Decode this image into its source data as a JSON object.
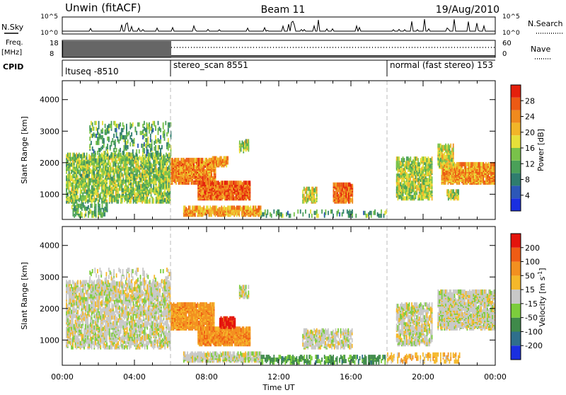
{
  "header": {
    "station": "Unwin (fitACF)",
    "beam": "Beam 11",
    "date": "19/Aug/2010"
  },
  "summary": {
    "nsky_label": "N.Sky",
    "nsearch_label": "N.Search",
    "nsky_ticks": [
      "10^5",
      "10^0"
    ],
    "nsearch_ticks": [
      "10^5",
      "10^0"
    ],
    "freq_label": "Freq.",
    "freq_unit": "[MHz]",
    "freq_ticks": [
      "18",
      "8"
    ],
    "nave_label": "Nave",
    "nave_ticks": [
      "60",
      "0"
    ],
    "cpid_label": "CPID",
    "cpid_segments": [
      {
        "label": "ltuseq -8510",
        "start": 0,
        "end": 6
      },
      {
        "label": "stereo_scan 8551",
        "start": 6,
        "end": 18
      },
      {
        "label": "normal (fast stereo) 153",
        "start": 18,
        "end": 24
      }
    ]
  },
  "chart_data": [
    {
      "type": "heatmap",
      "name": "power",
      "ylabel": "Slant Range [km]",
      "xlabel": "Time UT",
      "xlim": [
        0,
        24
      ],
      "ylim": [
        200,
        4600
      ],
      "yticks": [
        "1000",
        "2000",
        "3000",
        "4000"
      ],
      "xticks": [
        "00:00",
        "04:00",
        "08:00",
        "12:00",
        "16:00",
        "20:00",
        "00:00"
      ],
      "colorbar": {
        "label": "Power [dB]",
        "ticks": [
          "4",
          "8",
          "12",
          "16",
          "20",
          "24",
          "28"
        ],
        "colors": [
          "#1a2fe0",
          "#2c57b8",
          "#2f7d6e",
          "#4aa058",
          "#79c24a",
          "#e6e03a",
          "#f2b528",
          "#f08a1e",
          "#ec5a14",
          "#e4200c"
        ]
      },
      "regions": [
        {
          "t0": 0.2,
          "t1": 6.0,
          "r0": 700,
          "r1": 2200,
          "level": 0.45,
          "dens": 0.55
        },
        {
          "t0": 1.5,
          "t1": 6.0,
          "r0": 2200,
          "r1": 3200,
          "level": 0.35,
          "dens": 0.18
        },
        {
          "t0": 0.5,
          "t1": 2.5,
          "r0": 250,
          "r1": 650,
          "level": 0.4,
          "dens": 0.3
        },
        {
          "t0": 6.0,
          "t1": 8.5,
          "r0": 1300,
          "r1": 2050,
          "level": 0.75,
          "dens": 0.8
        },
        {
          "t0": 8.3,
          "t1": 9.2,
          "r0": 1850,
          "r1": 2100,
          "level": 0.7,
          "dens": 0.7
        },
        {
          "t0": 7.5,
          "t1": 10.4,
          "r0": 800,
          "r1": 1300,
          "level": 0.82,
          "dens": 0.85
        },
        {
          "t0": 6.7,
          "t1": 11.0,
          "r0": 280,
          "r1": 520,
          "level": 0.7,
          "dens": 0.7
        },
        {
          "t0": 9.8,
          "t1": 10.3,
          "r0": 2300,
          "r1": 2650,
          "level": 0.45,
          "dens": 0.5
        },
        {
          "t0": 13.3,
          "t1": 14.1,
          "r0": 700,
          "r1": 1150,
          "level": 0.55,
          "dens": 0.5
        },
        {
          "t0": 15.0,
          "t1": 16.1,
          "r0": 700,
          "r1": 1250,
          "level": 0.8,
          "dens": 0.7
        },
        {
          "t0": 11.0,
          "t1": 18.0,
          "r0": 250,
          "r1": 420,
          "level": 0.35,
          "dens": 0.2
        },
        {
          "t0": 18.5,
          "t1": 20.5,
          "r0": 800,
          "r1": 2100,
          "level": 0.5,
          "dens": 0.55
        },
        {
          "t0": 21.0,
          "t1": 24.0,
          "r0": 1300,
          "r1": 1900,
          "level": 0.72,
          "dens": 0.8
        },
        {
          "t0": 20.8,
          "t1": 21.7,
          "r0": 1800,
          "r1": 2500,
          "level": 0.55,
          "dens": 0.6
        },
        {
          "t0": 21.3,
          "t1": 22.0,
          "r0": 800,
          "r1": 1050,
          "level": 0.5,
          "dens": 0.6
        }
      ]
    },
    {
      "type": "heatmap",
      "name": "velocity",
      "ylabel": "Slant Range [km]",
      "xlabel": "Time UT",
      "xlim": [
        0,
        24
      ],
      "ylim": [
        200,
        4600
      ],
      "yticks": [
        "1000",
        "2000",
        "3000",
        "4000"
      ],
      "xticks": [
        "00:00",
        "04:00",
        "08:00",
        "12:00",
        "16:00",
        "20:00",
        "00:00"
      ],
      "colorbar": {
        "label": "Velocity [m s^-1]",
        "ticks": [
          "200",
          "100",
          "50",
          "15",
          "-15",
          "-50",
          "-100",
          "-200"
        ],
        "colors": [
          "#1a2fe0",
          "#2f6f8c",
          "#3f8a4a",
          "#7ccd3c",
          "#c8c8c8",
          "#f5b82a",
          "#f39020",
          "#ef5c14",
          "#e4140c"
        ]
      },
      "regions": [
        {
          "t0": 0.2,
          "t1": 6.0,
          "r0": 700,
          "r1": 2800,
          "level": 0.5,
          "dens": 0.5
        },
        {
          "t0": 1.5,
          "t1": 6.0,
          "r0": 2800,
          "r1": 3200,
          "level": 0.5,
          "dens": 0.15
        },
        {
          "t0": 6.0,
          "t1": 8.4,
          "r0": 1300,
          "r1": 2100,
          "level": 0.7,
          "dens": 0.8
        },
        {
          "t0": 7.5,
          "t1": 10.4,
          "r0": 800,
          "r1": 1300,
          "level": 0.72,
          "dens": 0.85
        },
        {
          "t0": 8.7,
          "t1": 9.6,
          "r0": 1350,
          "r1": 1650,
          "level": 0.95,
          "dens": 0.7
        },
        {
          "t0": 6.7,
          "t1": 11.0,
          "r0": 280,
          "r1": 520,
          "level": 0.5,
          "dens": 0.7
        },
        {
          "t0": 9.8,
          "t1": 10.3,
          "r0": 2300,
          "r1": 2650,
          "level": 0.5,
          "dens": 0.5
        },
        {
          "t0": 11.0,
          "t1": 18.0,
          "r0": 220,
          "r1": 420,
          "level": 0.3,
          "dens": 0.35
        },
        {
          "t0": 13.3,
          "t1": 16.1,
          "r0": 700,
          "r1": 1250,
          "level": 0.5,
          "dens": 0.5
        },
        {
          "t0": 18.5,
          "t1": 20.5,
          "r0": 800,
          "r1": 2100,
          "level": 0.5,
          "dens": 0.55
        },
        {
          "t0": 20.8,
          "t1": 24.0,
          "r0": 1300,
          "r1": 2500,
          "level": 0.5,
          "dens": 0.7
        },
        {
          "t0": 18.0,
          "t1": 22.0,
          "r0": 250,
          "r1": 500,
          "level": 0.62,
          "dens": 0.3
        }
      ]
    }
  ]
}
